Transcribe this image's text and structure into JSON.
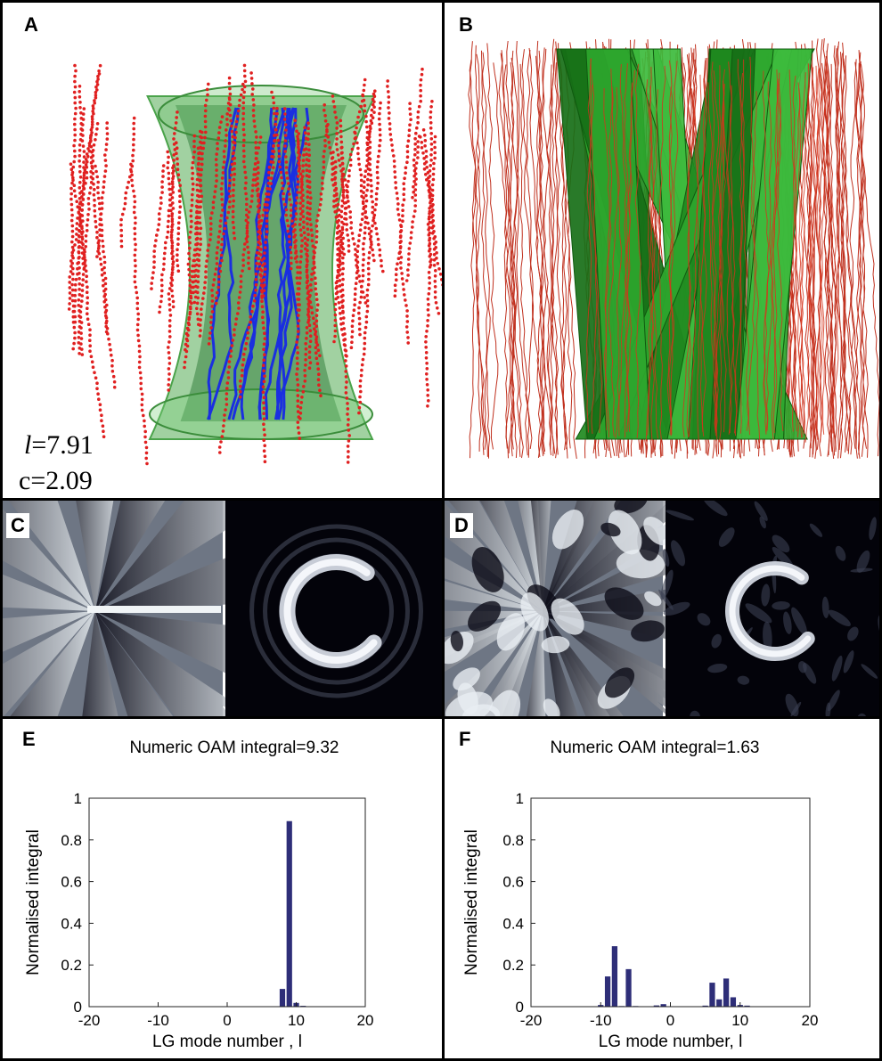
{
  "figure": {
    "panels": {
      "A": {
        "label": "A",
        "annotation_l": "l",
        "annotation_l_value": "=7.91",
        "annotation_c": "c=2.09"
      },
      "B": {
        "label": "B"
      },
      "C": {
        "label": "C"
      },
      "D": {
        "label": "D"
      },
      "E": {
        "label": "E"
      },
      "F": {
        "label": "F"
      }
    },
    "colors": {
      "track_red": "#e02020",
      "tube_green": "#2f9a2f",
      "vortex_blue": "#1a2fe0",
      "bar": "#2e2e78",
      "phase_dark": "#0c0c18",
      "phase_light": "#e8eef2"
    }
  },
  "chart_data": [
    {
      "panel": "E",
      "type": "bar",
      "title": "Numeric OAM integral=9.32",
      "xlabel": "LG mode number , l",
      "ylabel": "Normalised integral",
      "xlim": [
        -20,
        20
      ],
      "ylim": [
        0,
        1
      ],
      "xticks": [
        "-20",
        "-10",
        "0",
        "10",
        "20"
      ],
      "yticks": [
        "0",
        "0.2",
        "0.4",
        "0.6",
        "0.8",
        "1"
      ],
      "x": [
        -20,
        -19,
        -18,
        -17,
        -16,
        -15,
        -14,
        -13,
        -12,
        -11,
        -10,
        -9,
        -8,
        -7,
        -6,
        -5,
        -4,
        -3,
        -2,
        -1,
        0,
        1,
        2,
        3,
        4,
        5,
        6,
        7,
        8,
        9,
        10,
        11,
        12,
        13,
        14,
        15,
        16,
        17,
        18,
        19,
        20
      ],
      "values": [
        0,
        0,
        0,
        0,
        0,
        0,
        0,
        0,
        0,
        0,
        0,
        0,
        0,
        0,
        0,
        0,
        0,
        0,
        0,
        0,
        0,
        0,
        0,
        0,
        0,
        0,
        0,
        0,
        0.085,
        0.89,
        0.018,
        0.004,
        0,
        0,
        0,
        0,
        0,
        0,
        0,
        0,
        0
      ]
    },
    {
      "panel": "F",
      "type": "bar",
      "title": "Numeric OAM integral=1.63",
      "xlabel": "LG mode number, l",
      "ylabel": "Normalised integral",
      "xlim": [
        -20,
        20
      ],
      "ylim": [
        0,
        1
      ],
      "xticks": [
        "-20",
        "-10",
        "0",
        "10",
        "20"
      ],
      "yticks": [
        "0",
        "0.2",
        "0.4",
        "0.6",
        "0.8",
        "1"
      ],
      "x": [
        -20,
        -19,
        -18,
        -17,
        -16,
        -15,
        -14,
        -13,
        -12,
        -11,
        -10,
        -9,
        -8,
        -7,
        -6,
        -5,
        -4,
        -3,
        -2,
        -1,
        0,
        1,
        2,
        3,
        4,
        5,
        6,
        7,
        8,
        9,
        10,
        11,
        12,
        13,
        14,
        15,
        16,
        17,
        18,
        19,
        20
      ],
      "values": [
        0,
        0,
        0,
        0,
        0,
        0,
        0,
        0,
        0,
        0,
        0.008,
        0.145,
        0.29,
        0.003,
        0.18,
        0.003,
        0,
        0,
        0.006,
        0.012,
        0,
        0,
        0,
        0,
        0,
        0.005,
        0.115,
        0.035,
        0.135,
        0.045,
        0.008,
        0.005,
        0,
        0,
        0,
        0,
        0,
        0,
        0,
        0,
        0
      ]
    }
  ]
}
